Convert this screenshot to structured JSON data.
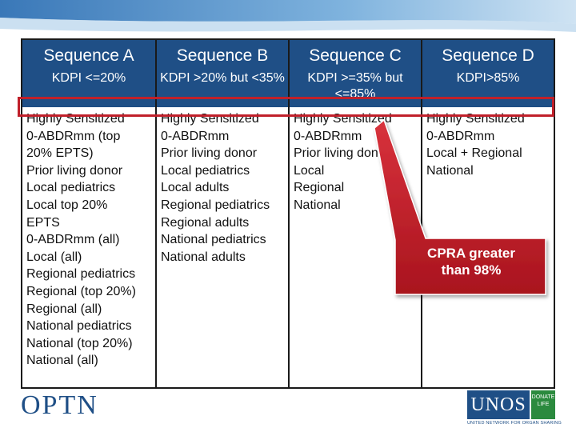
{
  "columns": [
    {
      "title": "Sequence A",
      "kdpi": "KDPI <=20%",
      "items": [
        "Highly Sensitized",
        "0-ABDRmm (top",
        "20% EPTS)",
        "Prior living donor",
        "Local pediatrics",
        "Local top 20%",
        "EPTS",
        "0-ABDRmm (all)",
        "Local (all)",
        "Regional pediatrics",
        "Regional (top 20%)",
        "Regional (all)",
        "National pediatrics",
        "National (top 20%)",
        "National (all)"
      ]
    },
    {
      "title": "Sequence B",
      "kdpi": "KDPI >20% but <35%",
      "items": [
        "Highly Sensitized",
        "0-ABDRmm",
        "Prior living donor",
        "Local pediatrics",
        "Local adults",
        "Regional pediatrics",
        "Regional adults",
        "National pediatrics",
        "National adults"
      ]
    },
    {
      "title": "Sequence C",
      "kdpi": "KDPI >=35% but <=85%",
      "items": [
        "Highly Sensitized",
        "0-ABDRmm",
        "Prior living donor",
        "Local",
        "Regional",
        "National"
      ]
    },
    {
      "title": "Sequence D",
      "kdpi": "KDPI>85%",
      "items": [
        "Highly Sensitized",
        "0-ABDRmm",
        "Local + Regional",
        "National"
      ]
    }
  ],
  "callout": {
    "line1": "CPRA greater",
    "line2": "than 98%"
  },
  "footer": {
    "optn_logo": "OPTN",
    "unos_logo": "UNOS",
    "donate_life": "DONATE LIFE",
    "unos_tagline": "UNITED NETWORK FOR ORGAN SHARING"
  },
  "colors": {
    "header_bg": "#1f4f86",
    "highlight": "#c0202a",
    "callout": "#c0202a"
  }
}
